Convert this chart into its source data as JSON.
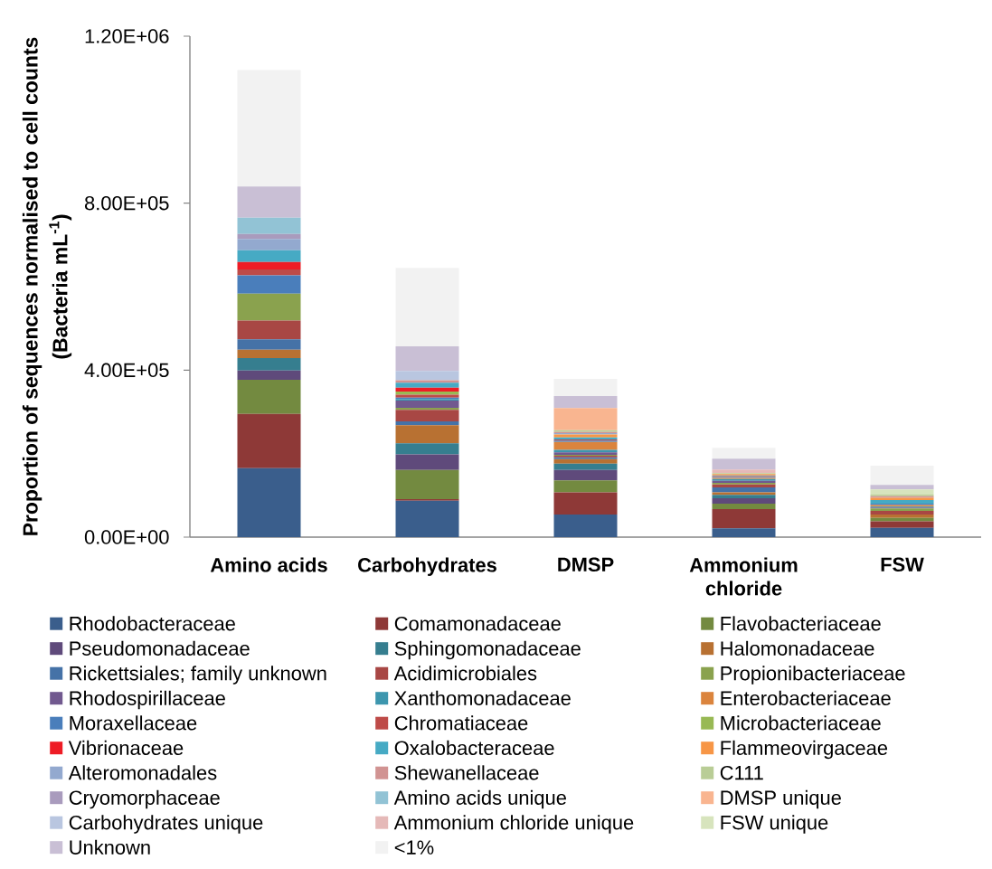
{
  "chart_data": {
    "type": "bar",
    "stacked": true,
    "legend": "bottom",
    "ylabel": "Proportion of sequences normalised to cell counts (Bacteria mL$^{-1}$)",
    "categories": [
      "Amino acids",
      "Carbohydrates",
      "DMSP",
      "Ammonium chloride",
      "FSW"
    ],
    "ylim": [
      0,
      1200000
    ],
    "yticks": [
      {
        "value": 0,
        "label": "0.00E+00"
      },
      {
        "value": 400000,
        "label": "4.00E+05"
      },
      {
        "value": 800000,
        "label": "8.00E+05"
      },
      {
        "value": 1200000,
        "label": "1.20E+06"
      }
    ],
    "series": [
      {
        "name": "Rhodobacteraceae",
        "color": "#3a5e8c",
        "values": [
          165000,
          87000,
          54000,
          21000,
          22000
        ]
      },
      {
        "name": "Comamonadaceae",
        "color": "#8e3937",
        "values": [
          130000,
          4000,
          53000,
          46000,
          16000
        ]
      },
      {
        "name": "Flavobacteriaceae",
        "color": "#738a40",
        "values": [
          82000,
          70000,
          29000,
          13000,
          8000
        ]
      },
      {
        "name": "Pseudomonadaceae",
        "color": "#5f4a7b",
        "values": [
          22000,
          37000,
          25000,
          13000,
          0
        ]
      },
      {
        "name": "Sphingomonadaceae",
        "color": "#367e8f",
        "values": [
          30000,
          27000,
          15000,
          8000,
          0
        ]
      },
      {
        "name": "Halomonadaceae",
        "color": "#b87132",
        "values": [
          20000,
          43000,
          11000,
          6000,
          8000
        ]
      },
      {
        "name": "Rickettsiales; family unknown",
        "color": "#4572a7",
        "values": [
          25000,
          9000,
          4000,
          12000,
          0
        ]
      },
      {
        "name": "Acidimicrobiales",
        "color": "#a84744",
        "values": [
          45000,
          28000,
          4000,
          7000,
          9000
        ]
      },
      {
        "name": "Propionibacteriaceae",
        "color": "#8aa24e",
        "values": [
          64000,
          5000,
          2000,
          4000,
          6000
        ]
      },
      {
        "name": "Rhodospirillaceae",
        "color": "#71598f",
        "values": [
          0,
          17000,
          6000,
          5000,
          2000
        ]
      },
      {
        "name": "Xanthomonadaceae",
        "color": "#3d96ae",
        "values": [
          0,
          4000,
          6000,
          4000,
          2000
        ]
      },
      {
        "name": "Enterobacteriaceae",
        "color": "#db843d",
        "values": [
          0,
          0,
          19000,
          3000,
          4000
        ]
      },
      {
        "name": "Moraxellaceae",
        "color": "#4a7ebb",
        "values": [
          44000,
          3000,
          3000,
          2000,
          3000
        ]
      },
      {
        "name": "Chromatiaceae",
        "color": "#be4b48",
        "values": [
          14000,
          7000,
          3000,
          2000,
          0
        ]
      },
      {
        "name": "Microbacteriaceae",
        "color": "#98b954",
        "values": [
          0,
          8000,
          0,
          0,
          0
        ]
      },
      {
        "name": "Vibrionaceae",
        "color": "#ee1c25",
        "values": [
          18000,
          9000,
          0,
          0,
          0
        ]
      },
      {
        "name": "Oxalobacteraceae",
        "color": "#46aac4",
        "values": [
          28000,
          12000,
          5000,
          2000,
          9000
        ]
      },
      {
        "name": "Flammeovirgaceae",
        "color": "#f79646",
        "values": [
          0,
          0,
          7000,
          3000,
          5000
        ]
      },
      {
        "name": "Alteromonadales",
        "color": "#93a9cf",
        "values": [
          27000,
          0,
          3000,
          0,
          0
        ]
      },
      {
        "name": "Shewanellaceae",
        "color": "#d19392",
        "values": [
          0,
          6000,
          3000,
          0,
          4000
        ]
      },
      {
        "name": "C111",
        "color": "#b9cd96",
        "values": [
          0,
          0,
          4000,
          2000,
          4000
        ]
      },
      {
        "name": "Cryomorphaceae",
        "color": "#a99bbd",
        "values": [
          12000,
          0,
          0,
          0,
          0
        ]
      },
      {
        "name": "Amino acids unique",
        "color": "#92c3d5",
        "values": [
          39000,
          0,
          0,
          0,
          0
        ]
      },
      {
        "name": "DMSP unique",
        "color": "#f9b590",
        "values": [
          0,
          0,
          53000,
          0,
          0
        ]
      },
      {
        "name": "Carbohydrates unique",
        "color": "#b9c6e0",
        "values": [
          0,
          22000,
          0,
          0,
          0
        ]
      },
      {
        "name": "Ammonium chloride unique",
        "color": "#e5b9b8",
        "values": [
          0,
          0,
          0,
          9000,
          0
        ]
      },
      {
        "name": "FSW unique",
        "color": "#d7e4bd",
        "values": [
          0,
          0,
          0,
          0,
          12000
        ]
      },
      {
        "name": "Unknown",
        "color": "#c9bfd5",
        "values": [
          75000,
          59000,
          29000,
          26000,
          11000
        ]
      },
      {
        "name": "<1%",
        "color": "#f2f2f2",
        "values": [
          279000,
          188000,
          41000,
          26000,
          46000
        ]
      }
    ]
  }
}
